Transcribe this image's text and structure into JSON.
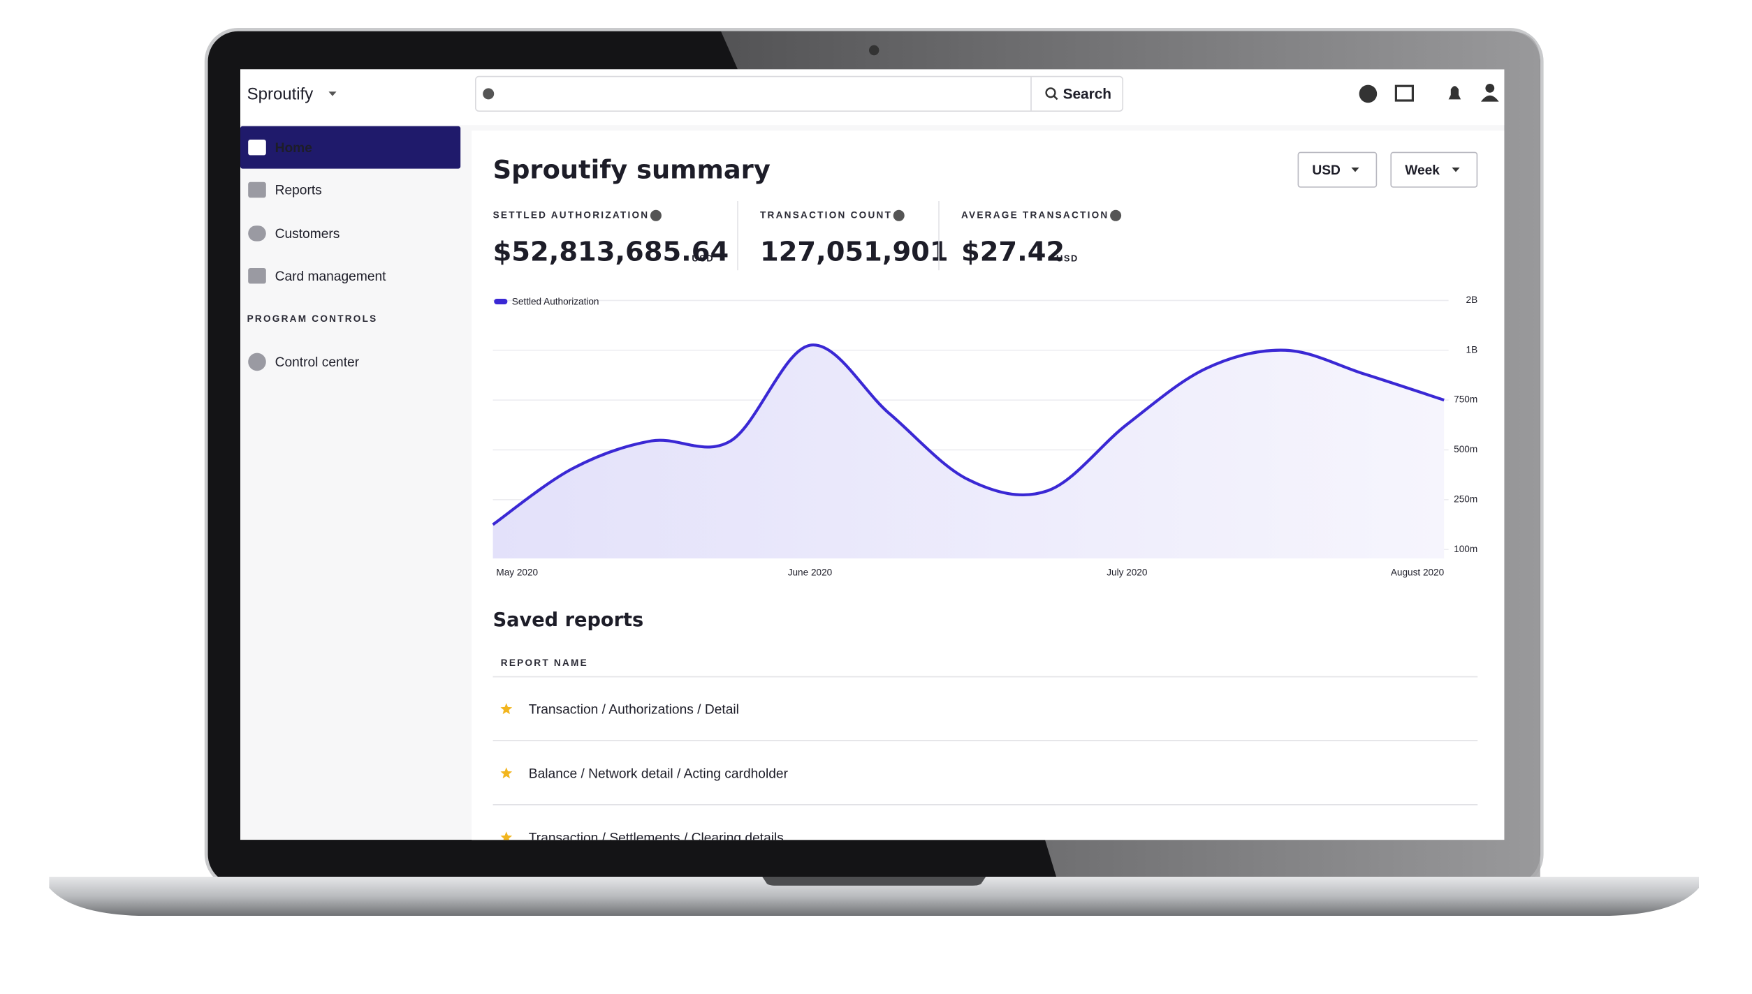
{
  "app": {
    "brand": "Sproutify",
    "search_button": "Search"
  },
  "nav": {
    "items": [
      "Home",
      "Reports",
      "Customers",
      "Card management"
    ],
    "section": "PROGRAM CONTROLS",
    "section_items": [
      "Control center"
    ]
  },
  "summary": {
    "title": "Sproutify summary",
    "currency": "USD",
    "period": "Week",
    "metrics": [
      {
        "label": "SETTLED AUTHORIZATION",
        "value": "$52,813,685.64",
        "unit": "USD"
      },
      {
        "label": "TRANSACTION COUNT",
        "value": "127,051,901"
      },
      {
        "label": "AVERAGE TRANSACTION",
        "value": "$27.42",
        "unit": "USD"
      }
    ]
  },
  "chart_data": {
    "type": "line",
    "categories": [
      "May 2020",
      null,
      null,
      null,
      "June 2020",
      null,
      null,
      null,
      "July 2020",
      null,
      null,
      null,
      "August 2020"
    ],
    "series": [
      {
        "name": "Settled Authorization",
        "color": "#3a28d4",
        "values": [
          175000000,
          405000000,
          545000000,
          545000000,
          1100000000,
          683000000,
          350000000,
          295000000,
          628000000,
          909000000,
          1000000000,
          880000000,
          750000000
        ]
      }
    ],
    "ylim": [
      100000000,
      2000000000
    ],
    "yticks": [
      {
        "value": 100000000,
        "label": "100m"
      },
      {
        "value": 250000000,
        "label": "250m"
      },
      {
        "value": 500000000,
        "label": "500m"
      },
      {
        "value": 750000000,
        "label": "750m"
      },
      {
        "value": 1000000000,
        "label": "1B"
      },
      {
        "value": 2000000000,
        "label": "2B"
      }
    ],
    "grid": true,
    "legend": "top-left"
  },
  "saved_reports": {
    "title": "Saved reports",
    "column": "REPORT NAME",
    "rows": [
      "Transaction / Authorizations / Detail",
      "Balance / Network detail / Acting cardholder",
      "Transaction / Settlements / Clearing details"
    ]
  }
}
